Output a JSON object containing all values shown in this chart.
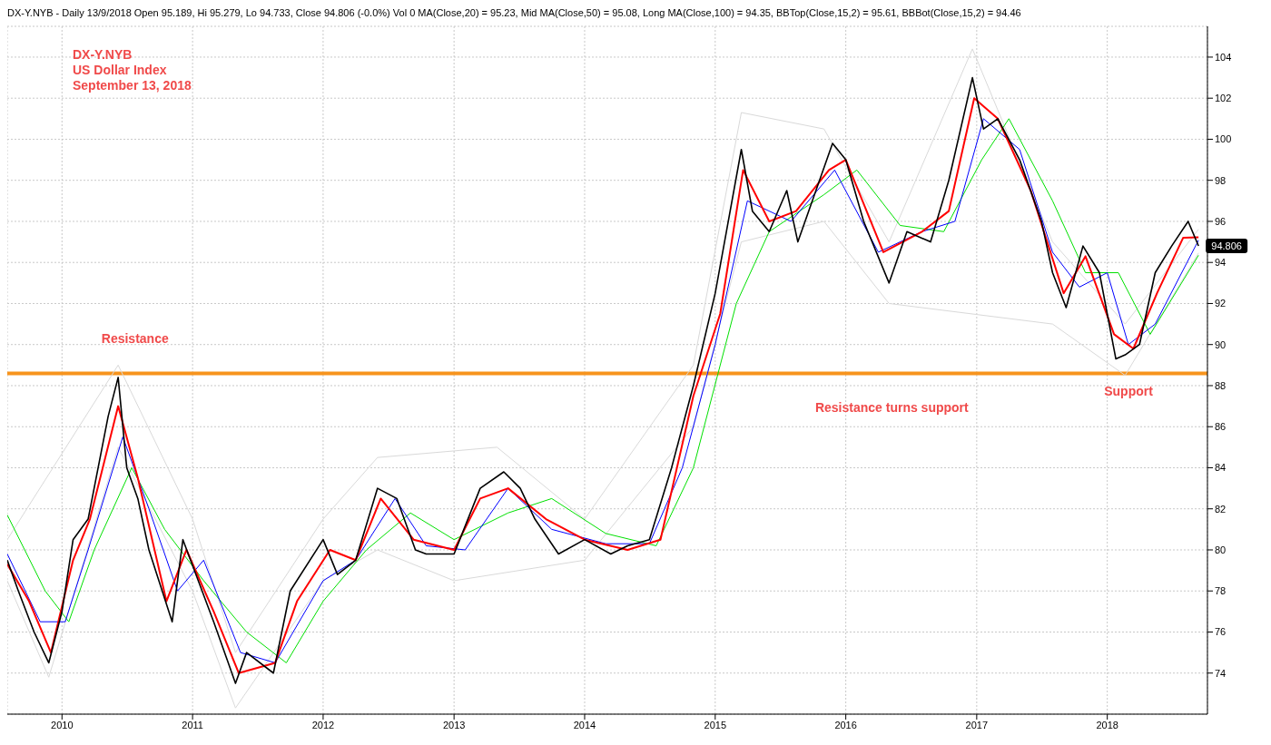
{
  "chart_data": {
    "type": "line",
    "title": "DX-Y.NYB",
    "subtitle": "DX-Y.NYB - Daily 13/9/2018 Open 95.189, Hi 95.279, Lo 94.733, Close 94.806 (-0.0%) Vol 0 MA(Close,20) = 95.23, Mid MA(Close,50) = 95.08, Long MA(Close,100) = 94.35, BBTop(Close,15,2) = 95.61, BBBot(Close,15,2) = 94.46",
    "annotations": [
      "US Dollar Index",
      "September 13, 2018",
      "Resistance",
      "Resistance turns support",
      "Support",
      {
        "text": "94.806",
        "x": "2018-09-13",
        "y": 94.806
      }
    ],
    "xlim": [
      "2009-08-01",
      "2018-10-08"
    ],
    "xticks": [
      "2010",
      "2011",
      "2012",
      "2013",
      "2014",
      "2015",
      "2016",
      "2017",
      "2018"
    ],
    "ylim": [
      72,
      105.5
    ],
    "yticks": [
      74,
      76,
      78,
      80,
      82,
      84,
      86,
      88,
      90,
      92,
      94,
      96,
      98,
      100,
      102,
      104
    ],
    "grid": true,
    "line_style": "solid",
    "marker": "none",
    "ref_lines": [
      {
        "axis": "y",
        "value": 88.6,
        "color": "#f7941d"
      }
    ],
    "series": [
      {
        "color": "#d9d9d9",
        "x": [
          "2009-08-01",
          "2010-06-07",
          "2011-01-01",
          "2011-05-01",
          "2012-01-01",
          "2012-06-01",
          "2013-05-01",
          "2014-01-01",
          "2014-11-01",
          "2015-03-15",
          "2015-11-01",
          "2016-05-01",
          "2016-12-20",
          "2017-08-01",
          "2018-02-20",
          "2018-09-13"
        ],
        "values": [
          80.5,
          89,
          81.5,
          75,
          81.5,
          84.5,
          85,
          81.5,
          89,
          101.3,
          100.5,
          95,
          104.4,
          95,
          91,
          95.61
        ]
      },
      {
        "color": "#d9d9d9",
        "x": [
          "2009-08-01",
          "2009-11-25",
          "2010-06-07",
          "2011-01-01",
          "2011-05-01",
          "2012-01-01",
          "2012-06-01",
          "2013-01-01",
          "2014-01-01",
          "2014-11-01",
          "2015-03-15",
          "2015-11-01",
          "2016-05-01",
          "2017-08-01",
          "2018-02-20",
          "2018-09-13"
        ],
        "values": [
          78.5,
          73.8,
          85,
          78,
          72.3,
          78.5,
          80,
          78.5,
          79.5,
          86,
          95,
          96,
          92,
          91,
          88.5,
          94.46
        ]
      },
      {
        "color": "#00e000",
        "x": [
          "2009-08-01",
          "2009-11-15",
          "2010-01-20",
          "2010-04-01",
          "2010-07-15",
          "2010-10-15",
          "2011-02-01",
          "2011-06-01",
          "2011-09-20",
          "2012-01-01",
          "2012-05-01",
          "2012-09-01",
          "2013-01-01",
          "2013-06-01",
          "2013-10-01",
          "2014-03-01",
          "2014-07-20",
          "2014-11-01",
          "2015-03-01",
          "2015-06-01",
          "2015-11-01",
          "2016-02-01",
          "2016-06-01",
          "2016-10-01",
          "2017-01-15",
          "2017-04-01",
          "2017-08-01",
          "2017-11-01",
          "2018-02-01",
          "2018-05-01",
          "2018-09-13"
        ],
        "values": [
          81.7,
          78,
          76.5,
          80,
          84,
          81,
          78.5,
          76,
          74.5,
          77.5,
          80,
          81.8,
          80.5,
          81.8,
          82.5,
          80.8,
          80.2,
          84,
          92,
          95.5,
          97.3,
          98.5,
          95.8,
          95.5,
          99,
          101,
          97,
          93.5,
          93.5,
          90.5,
          94.35
        ]
      },
      {
        "color": "#0000ff",
        "x": [
          "2009-08-01",
          "2009-11-01",
          "2010-01-10",
          "2010-03-15",
          "2010-06-20",
          "2010-09-01",
          "2010-11-20",
          "2011-02-01",
          "2011-05-15",
          "2011-08-20",
          "2012-01-01",
          "2012-04-01",
          "2012-07-20",
          "2012-10-15",
          "2013-02-01",
          "2013-06-01",
          "2013-10-01",
          "2014-03-01",
          "2014-07-01",
          "2014-10-01",
          "2015-01-01",
          "2015-04-01",
          "2015-08-01",
          "2015-12-01",
          "2016-04-01",
          "2016-08-01",
          "2016-11-01",
          "2017-01-20",
          "2017-05-01",
          "2017-08-01",
          "2017-10-15",
          "2018-01-01",
          "2018-03-01",
          "2018-05-15",
          "2018-09-13"
        ],
        "values": [
          79.8,
          76.5,
          76.5,
          80,
          85.5,
          82,
          78,
          79.5,
          75,
          74.5,
          78.5,
          79.5,
          82.5,
          80.2,
          80,
          83,
          81,
          80.3,
          80.3,
          84,
          90,
          97,
          96,
          98.5,
          94.5,
          95.5,
          96,
          101,
          99.5,
          94.5,
          92.8,
          93.5,
          90,
          91,
          95.08
        ]
      },
      {
        "color": "#ff0000",
        "x": [
          "2009-08-01",
          "2009-10-01",
          "2009-12-01",
          "2010-02-01",
          "2010-03-20",
          "2010-06-07",
          "2010-08-01",
          "2010-10-20",
          "2010-12-15",
          "2011-03-01",
          "2011-05-10",
          "2011-08-20",
          "2011-10-20",
          "2012-01-20",
          "2012-04-01",
          "2012-06-10",
          "2012-09-10",
          "2013-01-01",
          "2013-03-15",
          "2013-06-01",
          "2013-09-15",
          "2014-01-01",
          "2014-05-01",
          "2014-08-01",
          "2014-11-01",
          "2015-01-15",
          "2015-03-20",
          "2015-06-01",
          "2015-08-15",
          "2015-11-15",
          "2016-01-01",
          "2016-04-15",
          "2016-08-01",
          "2016-10-15",
          "2016-12-25",
          "2017-03-01",
          "2017-06-01",
          "2017-09-01",
          "2017-11-01",
          "2018-01-20",
          "2018-03-15",
          "2018-05-20",
          "2018-08-01",
          "2018-09-13"
        ],
        "values": [
          79.3,
          77.5,
          75,
          79.5,
          81.5,
          87,
          83.5,
          77.5,
          80,
          77,
          74,
          74.5,
          77.5,
          80,
          79.5,
          82.5,
          80.5,
          80,
          82.5,
          83,
          81.5,
          80.5,
          80,
          80.5,
          87.5,
          91.5,
          98.5,
          96,
          96.5,
          98.5,
          99,
          94.5,
          95.5,
          96.5,
          102,
          101,
          97.5,
          92.5,
          94.3,
          90.5,
          89.8,
          92.5,
          95.2,
          95.23
        ]
      },
      {
        "color": "#000000",
        "x": [
          "2009-08-01",
          "2009-09-01",
          "2009-10-15",
          "2009-11-25",
          "2010-01-01",
          "2010-02-01",
          "2010-03-15",
          "2010-05-10",
          "2010-06-07",
          "2010-07-01",
          "2010-08-01",
          "2010-09-01",
          "2010-11-05",
          "2010-12-05",
          "2011-03-01",
          "2011-05-01",
          "2011-06-01",
          "2011-08-15",
          "2011-10-01",
          "2012-01-01",
          "2012-02-10",
          "2012-04-01",
          "2012-06-01",
          "2012-07-25",
          "2012-09-15",
          "2012-10-15",
          "2013-01-01",
          "2013-03-15",
          "2013-05-20",
          "2013-07-05",
          "2013-08-15",
          "2013-10-20",
          "2014-01-01",
          "2014-03-15",
          "2014-05-01",
          "2014-07-01",
          "2014-09-01",
          "2014-11-01",
          "2015-01-01",
          "2015-03-15",
          "2015-04-15",
          "2015-06-01",
          "2015-07-20",
          "2015-08-20",
          "2015-11-25",
          "2016-01-01",
          "2016-02-20",
          "2016-05-01",
          "2016-06-20",
          "2016-08-25",
          "2016-10-15",
          "2016-12-20",
          "2017-01-20",
          "2017-03-01",
          "2017-05-01",
          "2017-07-01",
          "2017-08-01",
          "2017-09-08",
          "2017-10-25",
          "2017-12-10",
          "2018-01-25",
          "2018-02-20",
          "2018-04-01",
          "2018-05-15",
          "2018-06-30",
          "2018-08-15",
          "2018-09-13"
        ],
        "values": [
          79.5,
          78,
          76,
          74.5,
          77,
          80.5,
          81.5,
          86.5,
          88.4,
          84,
          82.5,
          80,
          76.5,
          80.5,
          76.5,
          73.5,
          75,
          74,
          78,
          80.5,
          78.8,
          79.5,
          83,
          82.5,
          80,
          79.8,
          79.8,
          83,
          83.8,
          83,
          81.5,
          79.8,
          80.5,
          79.8,
          80.2,
          80.5,
          84,
          88,
          92.5,
          99.5,
          96.5,
          95.5,
          97.5,
          95,
          99.8,
          99,
          96,
          93,
          95.5,
          95,
          98,
          103,
          100.5,
          101,
          99,
          96,
          93.5,
          91.8,
          94.8,
          93.5,
          89.3,
          89.5,
          90,
          93.5,
          94.8,
          96,
          94.806
        ]
      }
    ]
  }
}
